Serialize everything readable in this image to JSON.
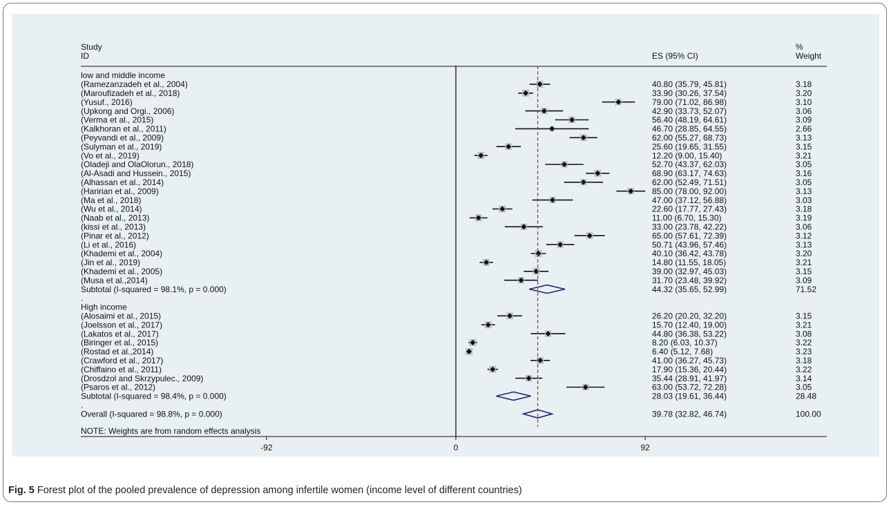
{
  "header": {
    "study_label_line1": "Study",
    "study_label_line2": "ID",
    "es_label": "ES (95% CI)",
    "weight_label_line1": "%",
    "weight_label_line2": "Weight"
  },
  "caption": {
    "label": "Fig. 5",
    "text": "Forest plot of the pooled prevalence of depression among infertile women (income level of different countries)"
  },
  "colors": {
    "background": "#e9f0f3",
    "box": "#bcc0c6",
    "point": "#111111",
    "ci_line": "#111111",
    "diamond": "#1a237e",
    "overall_line": "#b03a3a"
  },
  "chart_data": {
    "type": "forest",
    "title": "",
    "xlabel": "",
    "ylabel": "",
    "x_ticks": [
      -92,
      0,
      92
    ],
    "x_tick_labels": [
      "-92",
      "0",
      "92"
    ],
    "xlim": [
      -130,
      130
    ],
    "overall_estimate_line": 39.78,
    "note": "NOTE: Weights are from random effects analysis",
    "rows": [
      {
        "kind": "group",
        "label": "low and middle income"
      },
      {
        "kind": "study",
        "label": "(Ramezanzadeh et al., 2004)",
        "es": 40.8,
        "lo": 35.79,
        "hi": 45.81,
        "ci": "40.80 (35.79, 45.81)",
        "weight": "3.18"
      },
      {
        "kind": "study",
        "label": "(Maroufizadeh et al., 2018)",
        "es": 33.9,
        "lo": 30.26,
        "hi": 37.54,
        "ci": "33.90 (30.26, 37.54)",
        "weight": "3.20"
      },
      {
        "kind": "study",
        "label": "(Yusuf., 2016)",
        "es": 79.0,
        "lo": 71.02,
        "hi": 86.98,
        "ci": "79.00 (71.02, 86.98)",
        "weight": "3.10"
      },
      {
        "kind": "study",
        "label": "(Upkong and Orgi., 2006)",
        "es": 42.9,
        "lo": 33.73,
        "hi": 52.07,
        "ci": "42.90 (33.73, 52.07)",
        "weight": "3.06"
      },
      {
        "kind": "study",
        "label": "(Verma et al., 2015)",
        "es": 56.4,
        "lo": 48.19,
        "hi": 64.61,
        "ci": "56.40 (48.19, 64.61)",
        "weight": "3.09"
      },
      {
        "kind": "study",
        "label": "(Kalkhoran et al., 2011)",
        "es": 46.7,
        "lo": 28.85,
        "hi": 64.55,
        "ci": "46.70 (28.85, 64.55)",
        "weight": "2.66"
      },
      {
        "kind": "study",
        "label": "(Peyvandi et al., 2009)",
        "es": 62.0,
        "lo": 55.27,
        "hi": 68.73,
        "ci": "62.00 (55.27, 68.73)",
        "weight": "3.13"
      },
      {
        "kind": "study",
        "label": "(Sulyman et al., 2019)",
        "es": 25.6,
        "lo": 19.65,
        "hi": 31.55,
        "ci": "25.60 (19.65, 31.55)",
        "weight": "3.15"
      },
      {
        "kind": "study",
        "label": "(Vo et al., 2019)",
        "es": 12.2,
        "lo": 9.0,
        "hi": 15.4,
        "ci": "12.20 (9.00, 15.40)",
        "weight": "3.21"
      },
      {
        "kind": "study",
        "label": "(Oladeji and OlaOlorun., 2018)",
        "es": 52.7,
        "lo": 43.37,
        "hi": 62.03,
        "ci": "52.70 (43.37, 62.03)",
        "weight": "3.05"
      },
      {
        "kind": "study",
        "label": "(Al-Asadi and Hussein., 2015)",
        "es": 68.9,
        "lo": 63.17,
        "hi": 74.63,
        "ci": "68.90 (63.17, 74.63)",
        "weight": "3.16"
      },
      {
        "kind": "study",
        "label": "(Alhassan et al., 2014)",
        "es": 62.0,
        "lo": 52.49,
        "hi": 71.51,
        "ci": "62.00 (52.49, 71.51)",
        "weight": "3.05"
      },
      {
        "kind": "study",
        "label": "(Haririan et al., 2009)",
        "es": 85.0,
        "lo": 78.0,
        "hi": 92.0,
        "ci": "85.00 (78.00, 92.00)",
        "weight": "3.13"
      },
      {
        "kind": "study",
        "label": "(Ma et al., 2018)",
        "es": 47.0,
        "lo": 37.12,
        "hi": 56.88,
        "ci": "47.00 (37.12, 56.88)",
        "weight": "3.03"
      },
      {
        "kind": "study",
        "label": "(Wu et al., 2014)",
        "es": 22.6,
        "lo": 17.77,
        "hi": 27.43,
        "ci": "22.60 (17.77, 27.43)",
        "weight": "3.18"
      },
      {
        "kind": "study",
        "label": "(Naab et al., 2013)",
        "es": 11.0,
        "lo": 6.7,
        "hi": 15.3,
        "ci": "11.00 (6.70, 15.30)",
        "weight": "3.19"
      },
      {
        "kind": "study",
        "label": "(kissi  et al.,  2013)",
        "es": 33.0,
        "lo": 23.78,
        "hi": 42.22,
        "ci": "33.00 (23.78, 42.22)",
        "weight": "3.06"
      },
      {
        "kind": "study",
        "label": "(Pinar et al., 2012)",
        "es": 65.0,
        "lo": 57.61,
        "hi": 72.39,
        "ci": "65.00 (57.61, 72.39)",
        "weight": "3.12"
      },
      {
        "kind": "study",
        "label": "(Li et al., 2016)",
        "es": 50.71,
        "lo": 43.96,
        "hi": 57.46,
        "ci": "50.71 (43.96, 57.46)",
        "weight": "3.13"
      },
      {
        "kind": "study",
        "label": "(Khademi et al., 2004)",
        "es": 40.1,
        "lo": 36.42,
        "hi": 43.78,
        "ci": "40.10 (36.42, 43.78)",
        "weight": "3.20"
      },
      {
        "kind": "study",
        "label": "(Jin  et al., 2019)",
        "es": 14.8,
        "lo": 11.55,
        "hi": 18.05,
        "ci": "14.80 (11.55, 18.05)",
        "weight": "3.21"
      },
      {
        "kind": "study",
        "label": "(Khademi et al., 2005)",
        "es": 39.0,
        "lo": 32.97,
        "hi": 45.03,
        "ci": "39.00 (32.97, 45.03)",
        "weight": "3.15"
      },
      {
        "kind": "study",
        "label": "(Musa et al.,2014)",
        "es": 31.7,
        "lo": 23.48,
        "hi": 39.92,
        "ci": "31.70 (23.48, 39.92)",
        "weight": "3.09"
      },
      {
        "kind": "subtotal",
        "label": "Subtotal  (I-squared = 98.1%, p = 0.000)",
        "es": 44.32,
        "lo": 35.65,
        "hi": 52.99,
        "ci": "44.32 (35.65, 52.99)",
        "weight": "71.52"
      },
      {
        "kind": "dot",
        "label": "."
      },
      {
        "kind": "group",
        "label": "High income"
      },
      {
        "kind": "study",
        "label": "(Alosaimi et al., 2015)",
        "es": 26.2,
        "lo": 20.2,
        "hi": 32.2,
        "ci": "26.20 (20.20, 32.20)",
        "weight": "3.15"
      },
      {
        "kind": "study",
        "label": "(Joelsson et al., 2017)",
        "es": 15.7,
        "lo": 12.4,
        "hi": 19.0,
        "ci": "15.70 (12.40, 19.00)",
        "weight": "3.21"
      },
      {
        "kind": "study",
        "label": "(Lakatos et al., 2017)",
        "es": 44.8,
        "lo": 36.38,
        "hi": 53.22,
        "ci": "44.80 (36.38, 53.22)",
        "weight": "3.08"
      },
      {
        "kind": "study",
        "label": "(Biringer et al., 2015)",
        "es": 8.2,
        "lo": 6.03,
        "hi": 10.37,
        "ci": "8.20 (6.03, 10.37)",
        "weight": "3.22"
      },
      {
        "kind": "study",
        "label": "(Rostad et al.,2014)",
        "es": 6.4,
        "lo": 5.12,
        "hi": 7.68,
        "ci": "6.40 (5.12, 7.68)",
        "weight": "3.23"
      },
      {
        "kind": "study",
        "label": "(Crawford et al., 2017)",
        "es": 41.0,
        "lo": 36.27,
        "hi": 45.73,
        "ci": "41.00 (36.27, 45.73)",
        "weight": "3.18"
      },
      {
        "kind": "study",
        "label": "(Chiffaino et al., 2011)",
        "es": 17.9,
        "lo": 15.36,
        "hi": 20.44,
        "ci": "17.90 (15.36, 20.44)",
        "weight": "3.22"
      },
      {
        "kind": "study",
        "label": "(Drosdzol and Skrzypulec., 2009)",
        "es": 35.44,
        "lo": 28.91,
        "hi": 41.97,
        "ci": "35.44 (28.91, 41.97)",
        "weight": "3.14"
      },
      {
        "kind": "study",
        "label": "(Psaros et al., 2012)",
        "es": 63.0,
        "lo": 53.72,
        "hi": 72.28,
        "ci": "63.00 (53.72, 72.28)",
        "weight": "3.05"
      },
      {
        "kind": "subtotal",
        "label": "Subtotal  (I-squared = 98.4%, p = 0.000)",
        "es": 28.03,
        "lo": 19.61,
        "hi": 36.44,
        "ci": "28.03 (19.61, 36.44)",
        "weight": "28.48"
      },
      {
        "kind": "dot",
        "label": "."
      },
      {
        "kind": "overall",
        "label": "Overall  (I-squared = 98.8%, p = 0.000)",
        "es": 39.78,
        "lo": 32.82,
        "hi": 46.74,
        "ci": "39.78 (32.82, 46.74)",
        "weight": "100.00"
      }
    ]
  }
}
